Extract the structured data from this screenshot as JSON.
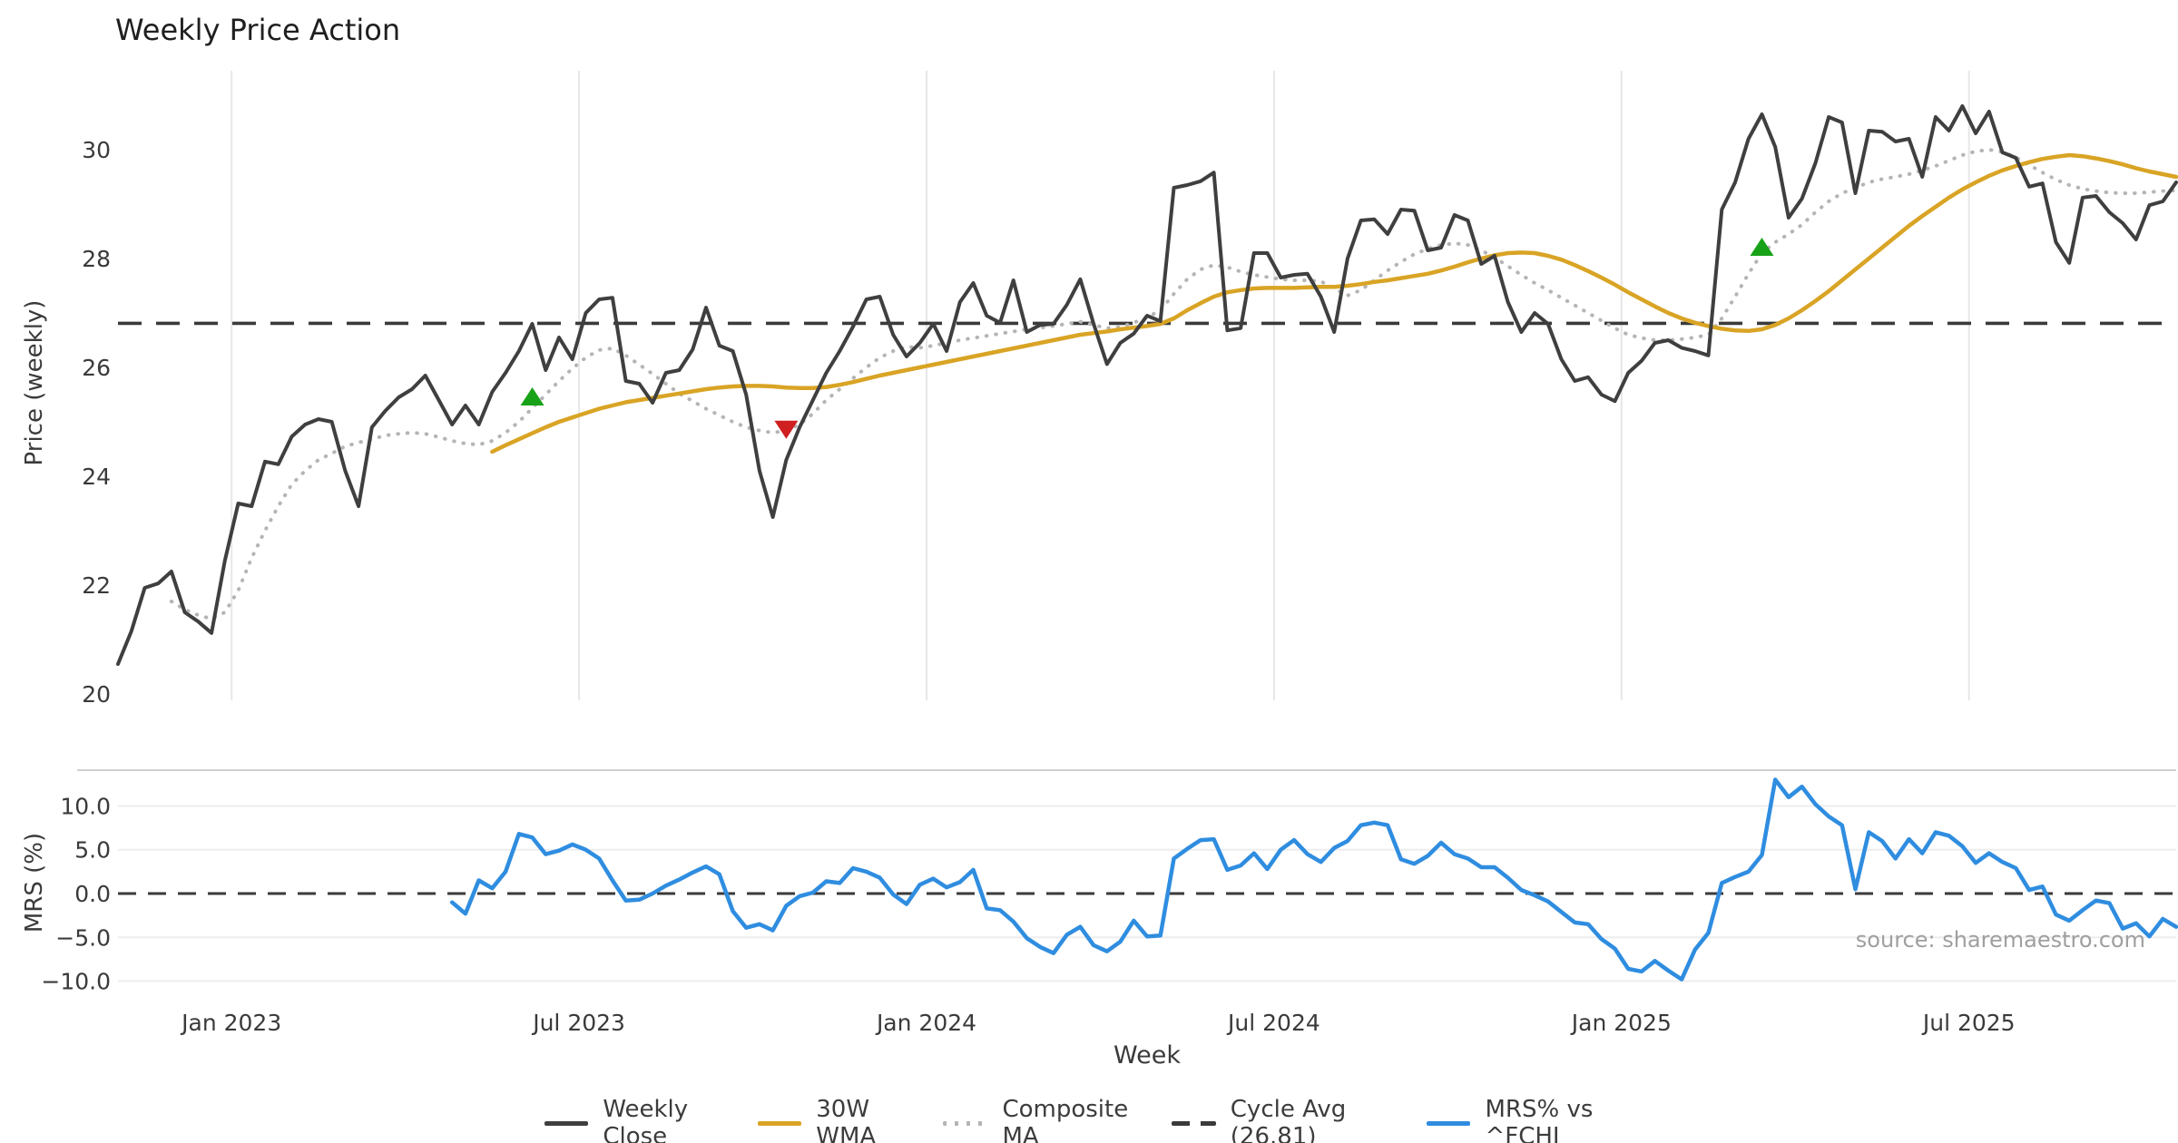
{
  "title": "Weekly Price Action",
  "source_text": "source: sharemaestro.com",
  "axes": {
    "price_label": "Price (weekly)",
    "mrs_label": "MRS (%)",
    "x_label": "Week"
  },
  "legend": {
    "items": [
      {
        "label": "Weekly Close"
      },
      {
        "label": "30W WMA"
      },
      {
        "label": "Composite MA"
      },
      {
        "label": "Cycle Avg (26.81)"
      },
      {
        "label": "MRS% vs ^FCHI"
      }
    ]
  },
  "chart_data": {
    "type": "line",
    "title": "Weekly Price Action",
    "x_unit": "weekly index (Nov 2022 - Oct 2025)",
    "weeks_total": 155,
    "x_ticks": [
      {
        "label": "Jan 2023",
        "week": 8.5
      },
      {
        "label": "Jul 2023",
        "week": 34.5
      },
      {
        "label": "Jan 2024",
        "week": 60.5
      },
      {
        "label": "Jul 2024",
        "week": 86.5
      },
      {
        "label": "Jan 2025",
        "week": 112.5
      },
      {
        "label": "Jul 2025",
        "week": 138.5
      }
    ],
    "price_axis": {
      "tick_values": [
        30,
        28,
        26,
        24,
        22,
        20
      ],
      "tick_labels": [
        "30",
        "28",
        "26",
        "24",
        "22",
        "20"
      ],
      "ylim": [
        19.9,
        31.45
      ]
    },
    "mrs_axis": {
      "tick_values": [
        10,
        5,
        0,
        -5,
        -10
      ],
      "tick_labels": [
        "10.0",
        "5.0",
        "0.0",
        "−5.0",
        "−10.0"
      ],
      "grid_values": [
        10,
        5,
        -5,
        -10
      ],
      "ylim": [
        -11.7,
        14.1
      ]
    },
    "reference_lines": [
      {
        "name": "Cycle Avg",
        "panel": "price",
        "value": 26.81,
        "style": "dashed",
        "color": "#3a3a3a"
      },
      {
        "name": "MRS zero",
        "panel": "mrs",
        "value": 0.0,
        "style": "dashed",
        "color": "#3a3a3a"
      }
    ],
    "series": [
      {
        "name": "Weekly Close",
        "panel": "price",
        "style": "solid",
        "color": "#3f3f3f",
        "width": 4,
        "start_week": 0,
        "values": [
          20.55,
          21.15,
          21.95,
          22.03,
          22.25,
          21.5,
          21.33,
          21.12,
          22.45,
          23.5,
          23.45,
          24.27,
          24.22,
          24.73,
          24.95,
          25.05,
          25.0,
          24.1,
          23.45,
          24.9,
          25.2,
          25.45,
          25.6,
          25.85,
          25.4,
          24.95,
          25.3,
          24.95,
          25.55,
          25.9,
          26.3,
          26.8,
          25.95,
          26.55,
          26.15,
          27.0,
          27.25,
          27.28,
          25.75,
          25.7,
          25.35,
          25.9,
          25.95,
          26.33,
          27.1,
          26.4,
          26.3,
          25.5,
          24.1,
          23.25,
          24.3,
          24.9,
          25.4,
          25.9,
          26.3,
          26.75,
          27.25,
          27.3,
          26.6,
          26.2,
          26.45,
          26.8,
          26.3,
          27.2,
          27.55,
          26.95,
          26.82,
          27.6,
          26.65,
          26.78,
          26.8,
          27.15,
          27.62,
          26.8,
          26.06,
          26.45,
          26.62,
          26.95,
          26.85,
          29.3,
          29.35,
          29.42,
          29.58,
          26.68,
          26.72,
          28.1,
          28.1,
          27.65,
          27.7,
          27.72,
          27.3,
          26.65,
          28.0,
          28.7,
          28.72,
          28.45,
          28.9,
          28.88,
          28.15,
          28.2,
          28.8,
          28.7,
          27.9,
          28.05,
          27.2,
          26.65,
          27.0,
          26.8,
          26.15,
          25.75,
          25.82,
          25.5,
          25.38,
          25.9,
          26.12,
          26.45,
          26.5,
          26.36,
          26.3,
          26.22,
          28.9,
          29.4,
          30.2,
          30.65,
          30.05,
          28.75,
          29.1,
          29.75,
          30.6,
          30.5,
          29.2,
          30.35,
          30.33,
          30.15,
          30.2,
          29.5,
          30.6,
          30.35,
          30.8,
          30.3,
          30.7,
          29.95,
          29.85,
          29.32,
          29.38,
          28.3,
          27.92,
          29.12,
          29.15,
          28.85,
          28.65,
          28.35,
          28.98,
          29.05,
          29.4
        ]
      },
      {
        "name": "30W WMA",
        "panel": "price",
        "style": "solid",
        "color": "#d9a425",
        "width": 4.5,
        "start_week": 28,
        "values": [
          24.45,
          24.57,
          24.68,
          24.79,
          24.9,
          25.0,
          25.08,
          25.16,
          25.24,
          25.3,
          25.36,
          25.4,
          25.44,
          25.48,
          25.52,
          25.56,
          25.6,
          25.63,
          25.65,
          25.66,
          25.66,
          25.65,
          25.63,
          25.62,
          25.62,
          25.64,
          25.68,
          25.73,
          25.79,
          25.85,
          25.9,
          25.95,
          26.0,
          26.05,
          26.1,
          26.15,
          26.2,
          26.25,
          26.3,
          26.35,
          26.4,
          26.45,
          26.5,
          26.55,
          26.6,
          26.63,
          26.66,
          26.7,
          26.73,
          26.76,
          26.8,
          26.9,
          27.05,
          27.18,
          27.3,
          27.38,
          27.42,
          27.45,
          27.46,
          27.46,
          27.46,
          27.47,
          27.48,
          27.48,
          27.5,
          27.53,
          27.57,
          27.6,
          27.64,
          27.68,
          27.72,
          27.78,
          27.85,
          27.93,
          28.0,
          28.06,
          28.1,
          28.11,
          28.1,
          28.05,
          27.98,
          27.88,
          27.77,
          27.65,
          27.52,
          27.38,
          27.25,
          27.12,
          27.0,
          26.9,
          26.82,
          26.76,
          26.71,
          26.68,
          26.67,
          26.7,
          26.78,
          26.9,
          27.05,
          27.22,
          27.4,
          27.6,
          27.8,
          28.0,
          28.2,
          28.4,
          28.6,
          28.78,
          28.95,
          29.12,
          29.27,
          29.4,
          29.52,
          29.62,
          29.7,
          29.77,
          29.83,
          29.87,
          29.9,
          29.88,
          29.84,
          29.79,
          29.73,
          29.66,
          29.6,
          29.55,
          29.5
        ]
      },
      {
        "name": "Composite MA",
        "panel": "price",
        "style": "dotted",
        "color": "#b5b5b5",
        "width": 4,
        "start_week": 4,
        "values": [
          21.7,
          21.55,
          21.45,
          21.38,
          21.5,
          21.9,
          22.5,
          23.0,
          23.45,
          23.85,
          24.1,
          24.3,
          24.42,
          24.55,
          24.62,
          24.68,
          24.75,
          24.78,
          24.8,
          24.78,
          24.72,
          24.65,
          24.6,
          24.58,
          24.65,
          24.8,
          25.0,
          25.25,
          25.5,
          25.75,
          25.98,
          26.18,
          26.32,
          26.35,
          26.22,
          26.05,
          25.88,
          25.7,
          25.52,
          25.38,
          25.24,
          25.12,
          25.0,
          24.9,
          24.84,
          24.8,
          24.84,
          24.95,
          25.15,
          25.4,
          25.6,
          25.8,
          26.0,
          26.18,
          26.3,
          26.38,
          26.36,
          26.4,
          26.45,
          26.5,
          26.54,
          26.58,
          26.62,
          26.66,
          26.7,
          26.73,
          26.76,
          26.8,
          26.84,
          26.78,
          26.72,
          26.74,
          26.82,
          26.92,
          27.05,
          27.35,
          27.62,
          27.8,
          27.88,
          27.84,
          27.76,
          27.7,
          27.66,
          27.62,
          27.6,
          27.6,
          27.58,
          27.45,
          27.32,
          27.42,
          27.6,
          27.78,
          27.94,
          28.08,
          28.18,
          28.25,
          28.28,
          28.25,
          28.15,
          28.02,
          27.86,
          27.7,
          27.55,
          27.42,
          27.28,
          27.14,
          27.0,
          26.86,
          26.72,
          26.6,
          26.54,
          26.5,
          26.5,
          26.52,
          26.55,
          26.6,
          26.9,
          27.3,
          27.72,
          28.1,
          28.3,
          28.45,
          28.62,
          28.85,
          29.05,
          29.2,
          29.3,
          29.4,
          29.46,
          29.5,
          29.55,
          29.62,
          29.7,
          29.8,
          29.9,
          29.97,
          30.0,
          29.96,
          29.86,
          29.72,
          29.58,
          29.45,
          29.35,
          29.28,
          29.24,
          29.21,
          29.2,
          29.2,
          29.22,
          29.24,
          29.25
        ]
      },
      {
        "name": "MRS% vs ^FCHI",
        "panel": "mrs",
        "style": "solid",
        "color": "#2f8de0",
        "width": 4.5,
        "start_week": 25,
        "values": [
          -1.0,
          -2.3,
          1.5,
          0.6,
          2.5,
          6.8,
          6.4,
          4.5,
          4.9,
          5.6,
          5.0,
          4.0,
          1.5,
          -0.8,
          -0.7,
          0.0,
          0.9,
          1.6,
          2.4,
          3.1,
          2.2,
          -2.0,
          -3.9,
          -3.5,
          -4.2,
          -1.4,
          -0.3,
          0.1,
          1.4,
          1.2,
          2.9,
          2.5,
          1.8,
          -0.1,
          -1.2,
          1.0,
          1.7,
          0.7,
          1.3,
          2.7,
          -1.7,
          -1.9,
          -3.2,
          -5.1,
          -6.1,
          -6.8,
          -4.7,
          -3.8,
          -5.9,
          -6.6,
          -5.5,
          -3.1,
          -4.9,
          -4.8,
          4.0,
          5.1,
          6.1,
          6.2,
          2.7,
          3.2,
          4.6,
          2.8,
          5.0,
          6.1,
          4.5,
          3.6,
          5.2,
          6.0,
          7.8,
          8.1,
          7.8,
          3.9,
          3.4,
          4.3,
          5.8,
          4.5,
          4.0,
          3.0,
          3.0,
          1.8,
          0.4,
          -0.2,
          -0.9,
          -2.1,
          -3.3,
          -3.5,
          -5.2,
          -6.3,
          -8.6,
          -8.9,
          -7.7,
          -8.8,
          -9.8,
          -6.4,
          -4.5,
          1.2,
          1.9,
          2.5,
          4.4,
          13.0,
          11.0,
          12.2,
          10.2,
          8.8,
          7.8,
          0.5,
          7.0,
          6.0,
          4.0,
          6.2,
          4.6,
          7.0,
          6.6,
          5.4,
          3.5,
          4.6,
          3.6,
          2.9,
          0.4,
          0.8,
          -2.4,
          -3.1,
          -1.9,
          -0.8,
          -1.1,
          -4.0,
          -3.4,
          -4.9,
          -2.9,
          -3.8
        ]
      }
    ],
    "markers": [
      {
        "shape": "triangle-up",
        "color": "#17a217",
        "week": 31,
        "value": 25.45
      },
      {
        "shape": "triangle-down",
        "color": "#cf1f1f",
        "week": 50,
        "value": 24.87
      },
      {
        "shape": "triangle-up",
        "color": "#17a217",
        "week": 123,
        "value": 28.2
      }
    ]
  }
}
